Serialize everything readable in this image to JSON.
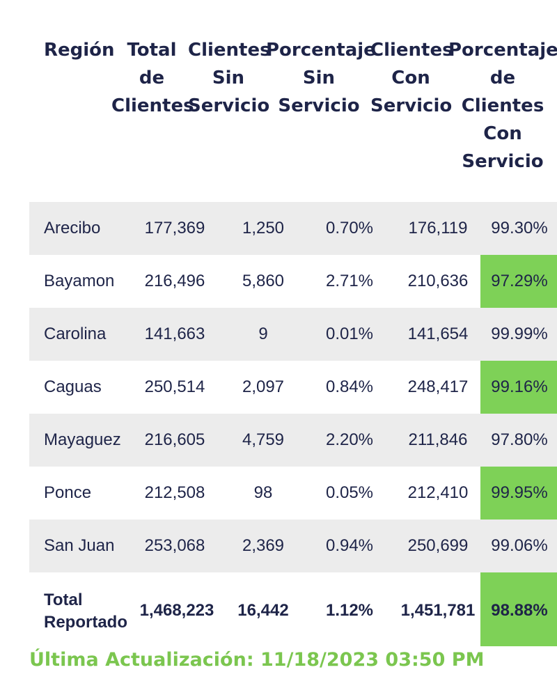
{
  "headers": [
    "Región",
    "Total\nde\nClientes",
    "Clientes\nSin\nServicio",
    "Porcentaje\nSin\nServicio",
    "Clientes\nCon\nServicio",
    "Porcentaje\nde\nClientes\nCon\nServicio"
  ],
  "rows": [
    {
      "region": "Arecibo",
      "total": "177,369",
      "sin": "1,250",
      "pct_sin": "0.70%",
      "con": "176,119",
      "pct_con": "99.30%"
    },
    {
      "region": "Bayamon",
      "total": "216,496",
      "sin": "5,860",
      "pct_sin": "2.71%",
      "con": "210,636",
      "pct_con": "97.29%"
    },
    {
      "region": "Carolina",
      "total": "141,663",
      "sin": "9",
      "pct_sin": "0.01%",
      "con": "141,654",
      "pct_con": "99.99%"
    },
    {
      "region": "Caguas",
      "total": "250,514",
      "sin": "2,097",
      "pct_sin": "0.84%",
      "con": "248,417",
      "pct_con": "99.16%"
    },
    {
      "region": "Mayaguez",
      "total": "216,605",
      "sin": "4,759",
      "pct_sin": "2.20%",
      "con": "211,846",
      "pct_con": "97.80%"
    },
    {
      "region": "Ponce",
      "total": "212,508",
      "sin": "98",
      "pct_sin": "0.05%",
      "con": "212,410",
      "pct_con": "99.95%"
    },
    {
      "region": "San Juan",
      "total": "253,068",
      "sin": "2,369",
      "pct_sin": "0.94%",
      "con": "250,699",
      "pct_con": "99.06%"
    }
  ],
  "total": {
    "label": "Total\nReportado",
    "total": "1,468,223",
    "sin": "16,442",
    "pct_sin": "1.12%",
    "con": "1,451,781",
    "pct_con": "98.88%"
  },
  "footer": "Última Actualización: 11/18/2023 03:50 PM",
  "colors": {
    "header_text": "#1e2448",
    "row_shade": "#ececec",
    "highlight_column": "#7ed157",
    "footer_text": "#7bc64f"
  }
}
